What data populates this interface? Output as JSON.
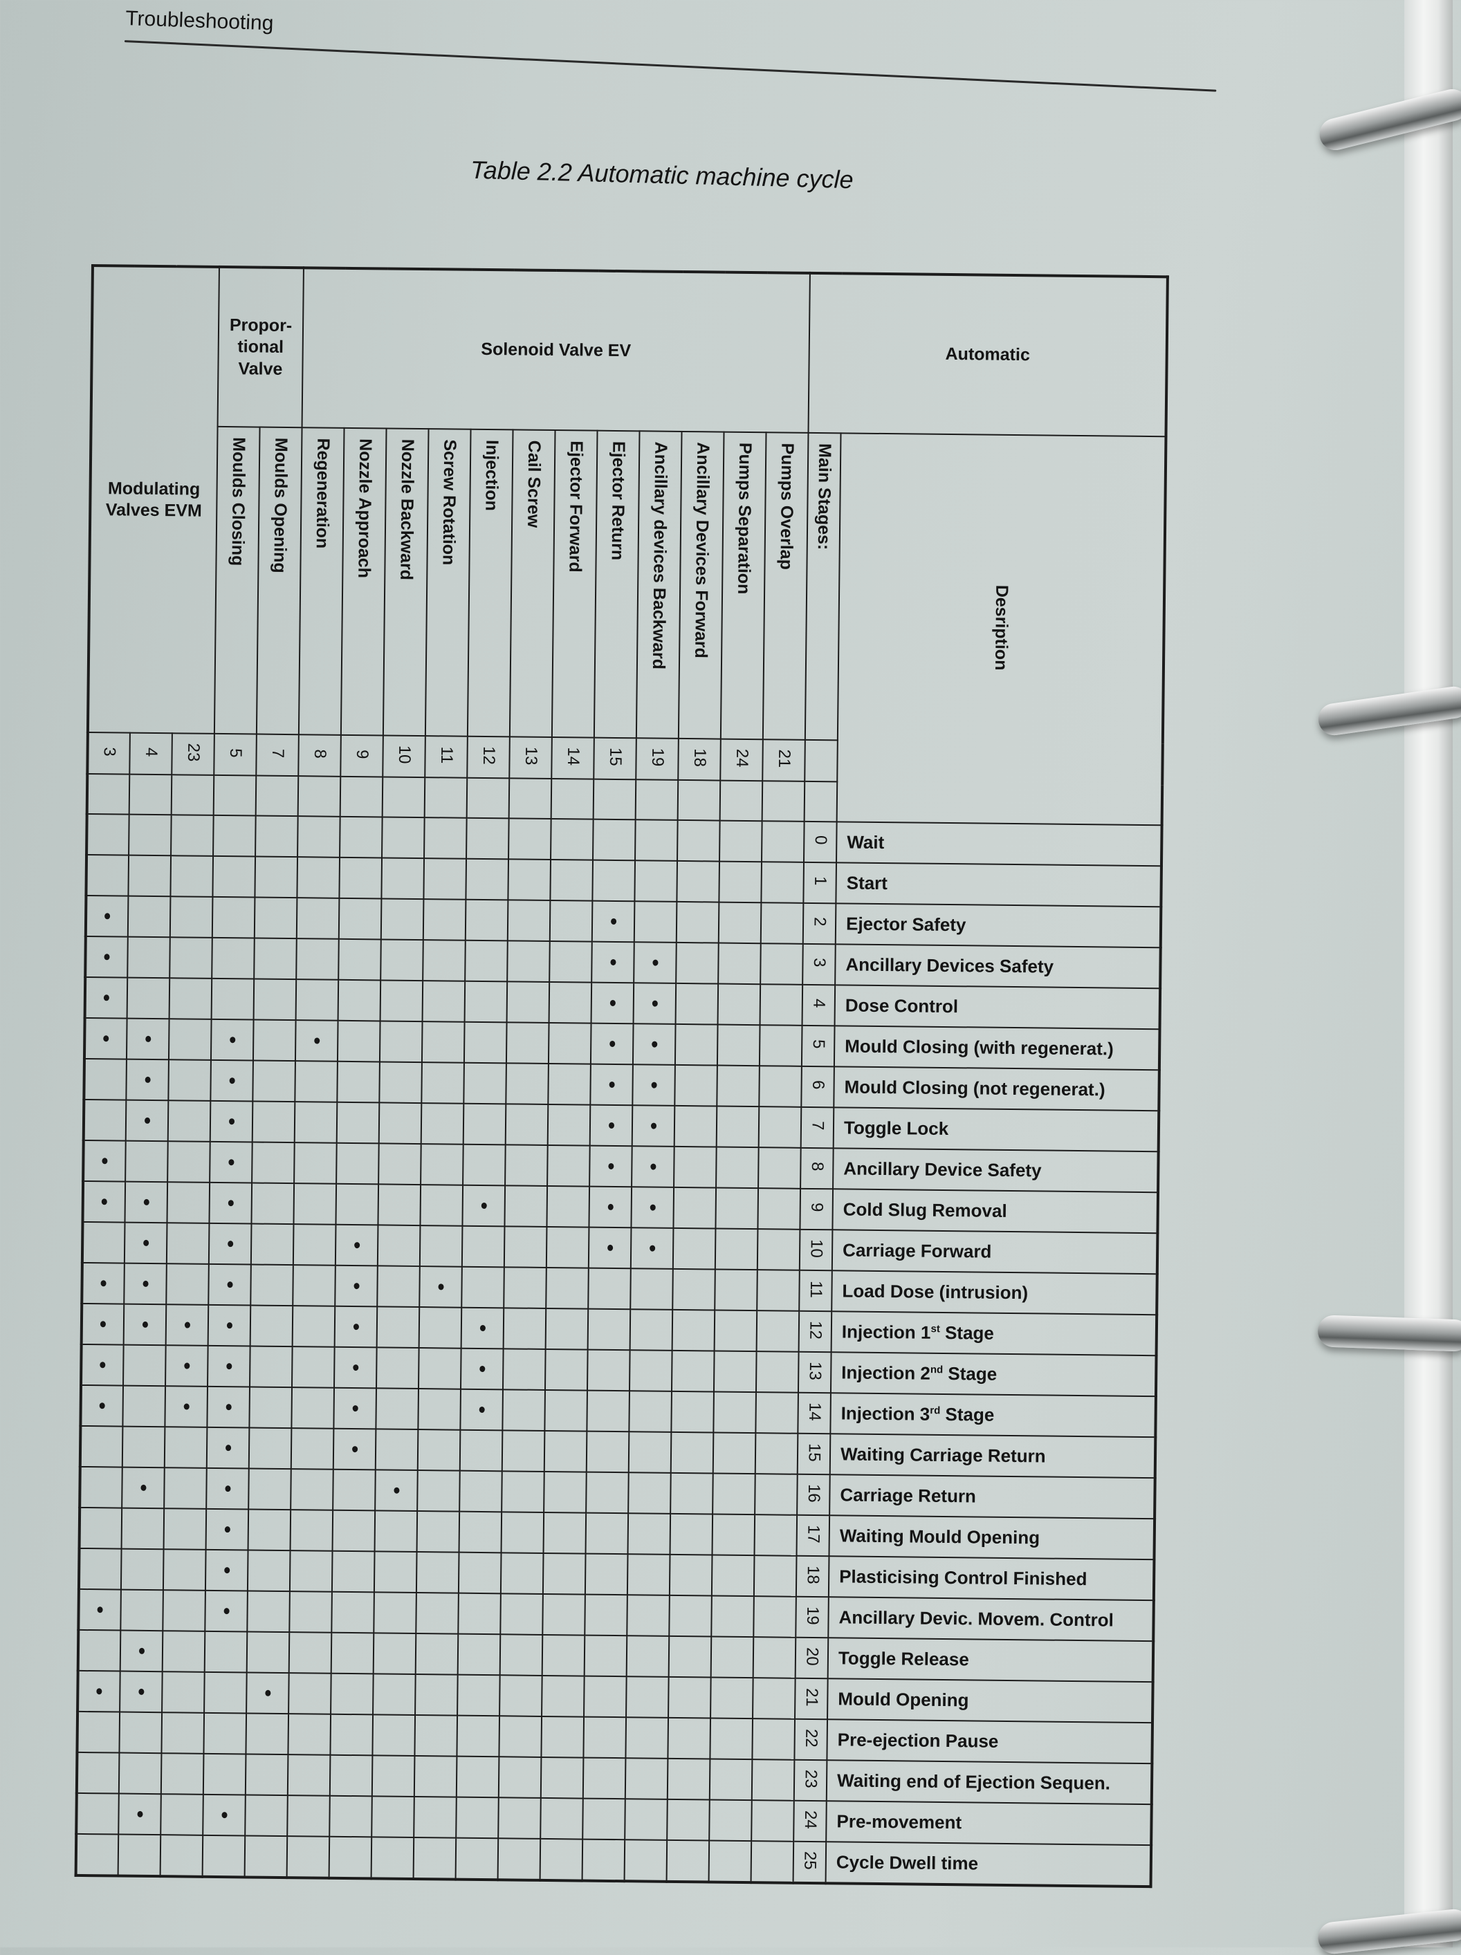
{
  "running_head": "Troubleshooting",
  "title": "Table 2.2  Automatic machine cycle",
  "groups": {
    "modulating": "Modulating Valves EVM",
    "proportional": "Propor-tional Valve",
    "solenoid": "Solenoid Valve EV",
    "automatic": "Automatic"
  },
  "main_stages_label": "Main Stages:",
  "description_label": "Desription",
  "columns": [
    {
      "group": "modulating",
      "number": "3",
      "label": ""
    },
    {
      "group": "modulating",
      "number": "4",
      "label": ""
    },
    {
      "group": "modulating",
      "number": "23",
      "label": ""
    },
    {
      "group": "proportional",
      "number": "5",
      "label": "Moulds Closing"
    },
    {
      "group": "proportional",
      "number": "7",
      "label": "Moulds Opening"
    },
    {
      "group": "solenoid",
      "number": "8",
      "label": "Regeneration"
    },
    {
      "group": "solenoid",
      "number": "9",
      "label": "Nozzle Approach"
    },
    {
      "group": "solenoid",
      "number": "10",
      "label": "Nozzle Backward"
    },
    {
      "group": "solenoid",
      "number": "11",
      "label": "Screw Rotation"
    },
    {
      "group": "solenoid",
      "number": "12",
      "label": "Injection"
    },
    {
      "group": "solenoid",
      "number": "13",
      "label": "Cail Screw"
    },
    {
      "group": "solenoid",
      "number": "14",
      "label": "Ejector Forward"
    },
    {
      "group": "solenoid",
      "number": "15",
      "label": "Ejector Return"
    },
    {
      "group": "solenoid",
      "number": "19",
      "label": "Ancillary devices Backward"
    },
    {
      "group": "solenoid",
      "number": "18",
      "label": "Ancillary Devices Forward"
    },
    {
      "group": "solenoid",
      "number": "24",
      "label": "Pumps Separation"
    },
    {
      "group": "solenoid",
      "number": "21",
      "label": "Pumps Overlap"
    }
  ],
  "stages": [
    {
      "n": "0",
      "desc": "Wait",
      "active": []
    },
    {
      "n": "1",
      "desc": "Start",
      "active": []
    },
    {
      "n": "2",
      "desc": "Ejector Safety",
      "active": [
        "3",
        "15"
      ]
    },
    {
      "n": "3",
      "desc": "Ancillary Devices Safety",
      "active": [
        "3",
        "15",
        "19"
      ]
    },
    {
      "n": "4",
      "desc": "Dose Control",
      "active": [
        "3",
        "15",
        "19"
      ]
    },
    {
      "n": "5",
      "desc": "Mould Closing (with regenerat.)",
      "active": [
        "3",
        "4",
        "5",
        "8",
        "15",
        "19"
      ]
    },
    {
      "n": "6",
      "desc": "Mould Closing (not regenerat.)",
      "active": [
        "4",
        "5",
        "15",
        "19"
      ]
    },
    {
      "n": "7",
      "desc": "Toggle Lock",
      "active": [
        "4",
        "5",
        "15",
        "19"
      ]
    },
    {
      "n": "8",
      "desc": "Ancillary Device Safety",
      "active": [
        "3",
        "5",
        "15",
        "19"
      ]
    },
    {
      "n": "9",
      "desc": "Cold Slug Removal",
      "active": [
        "3",
        "4",
        "5",
        "12",
        "15",
        "19"
      ]
    },
    {
      "n": "10",
      "desc": "Carriage Forward",
      "active": [
        "4",
        "5",
        "9",
        "15",
        "19"
      ]
    },
    {
      "n": "11",
      "desc": "Load Dose (intrusion)",
      "active": [
        "3",
        "4",
        "5",
        "9",
        "11"
      ]
    },
    {
      "n": "12",
      "desc": "Injection 1",
      "sup": "st",
      "desc_post": " Stage",
      "active": [
        "3",
        "4",
        "23",
        "5",
        "9",
        "12"
      ]
    },
    {
      "n": "13",
      "desc": "Injection 2",
      "sup": "nd",
      "desc_post": " Stage",
      "active": [
        "3",
        "23",
        "5",
        "9",
        "12"
      ]
    },
    {
      "n": "14",
      "desc": "Injection 3",
      "sup": "rd",
      "desc_post": " Stage",
      "active": [
        "3",
        "23",
        "5",
        "9",
        "12"
      ]
    },
    {
      "n": "15",
      "desc": "Waiting Carriage Return",
      "active": [
        "5",
        "9"
      ]
    },
    {
      "n": "16",
      "desc": "Carriage Return",
      "active": [
        "4",
        "5",
        "10"
      ]
    },
    {
      "n": "17",
      "desc": "Waiting Mould Opening",
      "active": [
        "5"
      ]
    },
    {
      "n": "18",
      "desc": "Plasticising Control Finished",
      "active": [
        "5"
      ]
    },
    {
      "n": "19",
      "desc": "Ancillary Devic. Movem. Control",
      "active": [
        "3",
        "5"
      ]
    },
    {
      "n": "20",
      "desc": "Toggle Release",
      "active": [
        "4"
      ]
    },
    {
      "n": "21",
      "desc": "Mould Opening",
      "active": [
        "3",
        "4",
        "7"
      ]
    },
    {
      "n": "22",
      "desc": "Pre-ejection Pause",
      "active": []
    },
    {
      "n": "23",
      "desc": "Waiting end of Ejection Sequen.",
      "active": []
    },
    {
      "n": "24",
      "desc": "Pre-movement",
      "active": [
        "4",
        "5"
      ]
    },
    {
      "n": "25",
      "desc": "Cycle Dwell time",
      "active": []
    }
  ],
  "colors": {
    "paper": "#c9d1cf",
    "ink": "#161616"
  }
}
